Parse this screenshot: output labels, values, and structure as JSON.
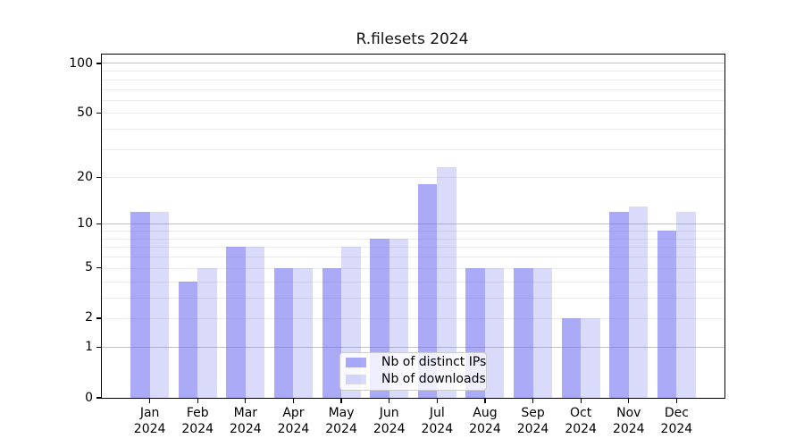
{
  "title": "R.filesets 2024",
  "legend": {
    "items": [
      {
        "label": "Nb of distinct IPs"
      },
      {
        "label": "Nb of downloads"
      }
    ]
  },
  "chart_data": {
    "type": "bar",
    "title": "R.filesets 2024",
    "categories": [
      "Jan",
      "Feb",
      "Mar",
      "Apr",
      "May",
      "Jun",
      "Jul",
      "Aug",
      "Sep",
      "Oct",
      "Nov",
      "Dec"
    ],
    "year": "2024",
    "series": [
      {
        "name": "Nb of distinct IPs",
        "color": "rgba(98,98,240,0.54)",
        "values": [
          12,
          4,
          7,
          5,
          5,
          8,
          18,
          5,
          5,
          2,
          12,
          9
        ]
      },
      {
        "name": "Nb of downloads",
        "color": "rgba(98,98,240,0.235)",
        "values": [
          12,
          5,
          7,
          5,
          7,
          8,
          23,
          5,
          5,
          2,
          13,
          12
        ]
      }
    ],
    "y_scale": "log1p",
    "y_ticks": [
      100,
      50,
      20,
      10,
      5,
      2,
      1,
      0
    ],
    "ylim": [
      0,
      114
    ],
    "grid_major": [
      1,
      10,
      100
    ],
    "grid_minor": [
      2,
      3,
      4,
      5,
      6,
      7,
      8,
      9,
      20,
      30,
      40,
      50,
      60,
      70,
      80,
      90
    ],
    "legend_position": "lower center",
    "grid": true
  }
}
